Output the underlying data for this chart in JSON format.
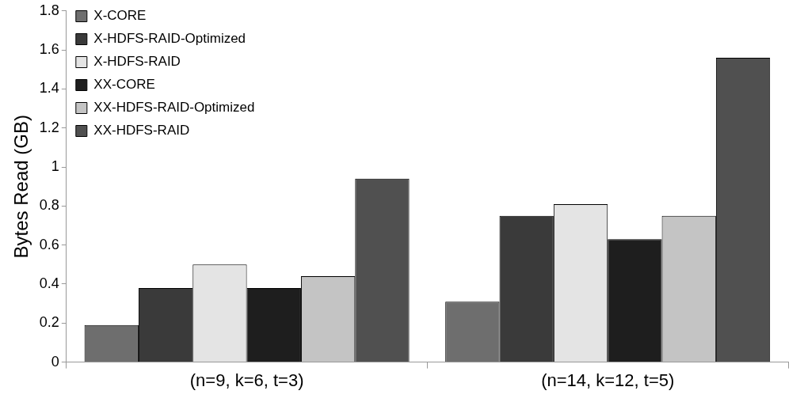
{
  "chart_data": {
    "type": "bar",
    "ylabel": "Bytes Read (GB)",
    "categories": [
      "(n=9, k=6, t=3)",
      "(n=14, k=12, t=5)"
    ],
    "series": [
      {
        "name": "X-CORE",
        "color": "#6e6e6e",
        "values": [
          0.19,
          0.31
        ]
      },
      {
        "name": "X-HDFS-RAID-Optimized",
        "color": "#3a3a3a",
        "values": [
          0.38,
          0.75
        ]
      },
      {
        "name": "X-HDFS-RAID",
        "color": "#e4e4e4",
        "values": [
          0.5,
          0.81
        ]
      },
      {
        "name": "XX-CORE",
        "color": "#1e1e1e",
        "values": [
          0.38,
          0.63
        ]
      },
      {
        "name": "XX-HDFS-RAID-Optimized",
        "color": "#c4c4c4",
        "values": [
          0.44,
          0.75
        ]
      },
      {
        "name": "XX-HDFS-RAID",
        "color": "#505050",
        "values": [
          0.94,
          1.56
        ]
      }
    ],
    "ylim": [
      0,
      1.8
    ],
    "yticks": [
      0,
      0.2,
      0.4,
      0.6,
      0.8,
      1,
      1.2,
      1.4,
      1.6,
      1.8
    ],
    "grid": false,
    "legend": "top left"
  }
}
